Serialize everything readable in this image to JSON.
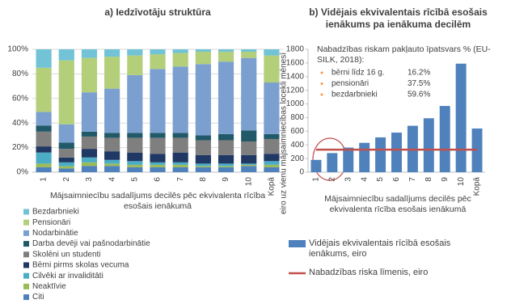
{
  "chart_data": [
    {
      "type": "bar",
      "stacked": true,
      "grid": true,
      "title": "a)  Iedzīvotāju struktūra",
      "x_label": "Mājsaimniecību sadalījums decilēs pēc ekvivalenta rīcība esošais ienākumā",
      "categories": [
        "1",
        "2",
        "3",
        "4",
        "5",
        "6",
        "7",
        "8",
        "9",
        "10",
        "Kopā"
      ],
      "ylim": [
        0,
        100
      ],
      "yticks": [
        {
          "value": 0,
          "label": "0%"
        },
        {
          "value": 20,
          "label": "20%"
        },
        {
          "value": 40,
          "label": "40%"
        },
        {
          "value": 60,
          "label": "60%"
        },
        {
          "value": 80,
          "label": "80%"
        },
        {
          "value": 100,
          "label": "100%"
        }
      ],
      "series": [
        {
          "name": "Citi",
          "color": "#4f81bd",
          "values": [
            4,
            3,
            5,
            5,
            4,
            4,
            4,
            4,
            4,
            5,
            4
          ]
        },
        {
          "name": "Neaktīvie",
          "color": "#9bbb59",
          "values": [
            3,
            2,
            3,
            2,
            2,
            2,
            2,
            1,
            1,
            1,
            2
          ]
        },
        {
          "name": "Cilvēki ar invaliditāti",
          "color": "#4bacc6",
          "values": [
            9,
            3,
            4,
            3,
            3,
            2,
            2,
            2,
            2,
            1,
            3
          ]
        },
        {
          "name": "Bērni pirms skolas vecuma",
          "color": "#1f3864",
          "values": [
            5,
            4,
            7,
            7,
            7,
            7,
            8,
            7,
            7,
            7,
            6
          ]
        },
        {
          "name": "Skolēni un studenti",
          "color": "#7f7f7f",
          "values": [
            12,
            7,
            10,
            11,
            12,
            13,
            12,
            12,
            12,
            11,
            12
          ]
        },
        {
          "name": "Darba devēji vai pašnodarbinātie",
          "color": "#215968",
          "values": [
            5,
            5,
            4,
            4,
            4,
            4,
            4,
            4,
            5,
            9,
            4
          ]
        },
        {
          "name": "Nodarbinātie",
          "color": "#7ba0d0",
          "values": [
            11,
            15,
            32,
            36,
            47,
            52,
            54,
            58,
            59,
            59,
            42
          ]
        },
        {
          "name": "Pensionāri",
          "color": "#b3cf7a",
          "values": [
            36,
            52,
            28,
            26,
            16,
            12,
            11,
            10,
            8,
            5,
            22
          ]
        },
        {
          "name": "Bezdarbnieki",
          "color": "#72c3d6",
          "values": [
            15,
            9,
            7,
            6,
            5,
            4,
            3,
            2,
            2,
            2,
            5
          ]
        }
      ]
    },
    {
      "type": "bar",
      "stacked": false,
      "grid": false,
      "title": "b)  Vidējais ekvivalentais rīcībā esošais ienākums pa ienākuma decilēm",
      "x_label": "Mājsaimniecību sadalījums decilēs pēc ekvivalenta rīcība esošais ienākumā",
      "y_label": "eiro uz vienu mājsaimniecības locekli mēnesī",
      "categories": [
        "1",
        "2",
        "3",
        "4",
        "5",
        "6",
        "7",
        "8",
        "9",
        "10",
        "Kopā"
      ],
      "ylim": [
        0,
        1800
      ],
      "yticks": [
        0,
        200,
        400,
        600,
        800,
        1000,
        1200,
        1400,
        1600,
        1800
      ],
      "series": [
        {
          "name": "Vidējais ekvivalentais rīcībā esošais ienākums, eiro",
          "color": "#4f81bd",
          "type": "bar",
          "values": [
            180,
            280,
            360,
            430,
            510,
            580,
            680,
            790,
            970,
            1590,
            640
          ]
        },
        {
          "name": "Nabadzības riska līmenis, eiro",
          "color": "#c0504d",
          "type": "line",
          "values": [
            330,
            330,
            330,
            330,
            330,
            330,
            330,
            330,
            330,
            330,
            330
          ]
        }
      ],
      "annotation": {
        "title": "Nabadzības riskam pakļauto īpatsvars % (EU-SILK, 2018):",
        "items": [
          {
            "label": "bērni līdz 16 g.",
            "value": "16.2%"
          },
          {
            "label": "pensionāri",
            "value": "37.5%"
          },
          {
            "label": "bezdarbnieki",
            "value": "59.6%"
          }
        ]
      }
    }
  ]
}
